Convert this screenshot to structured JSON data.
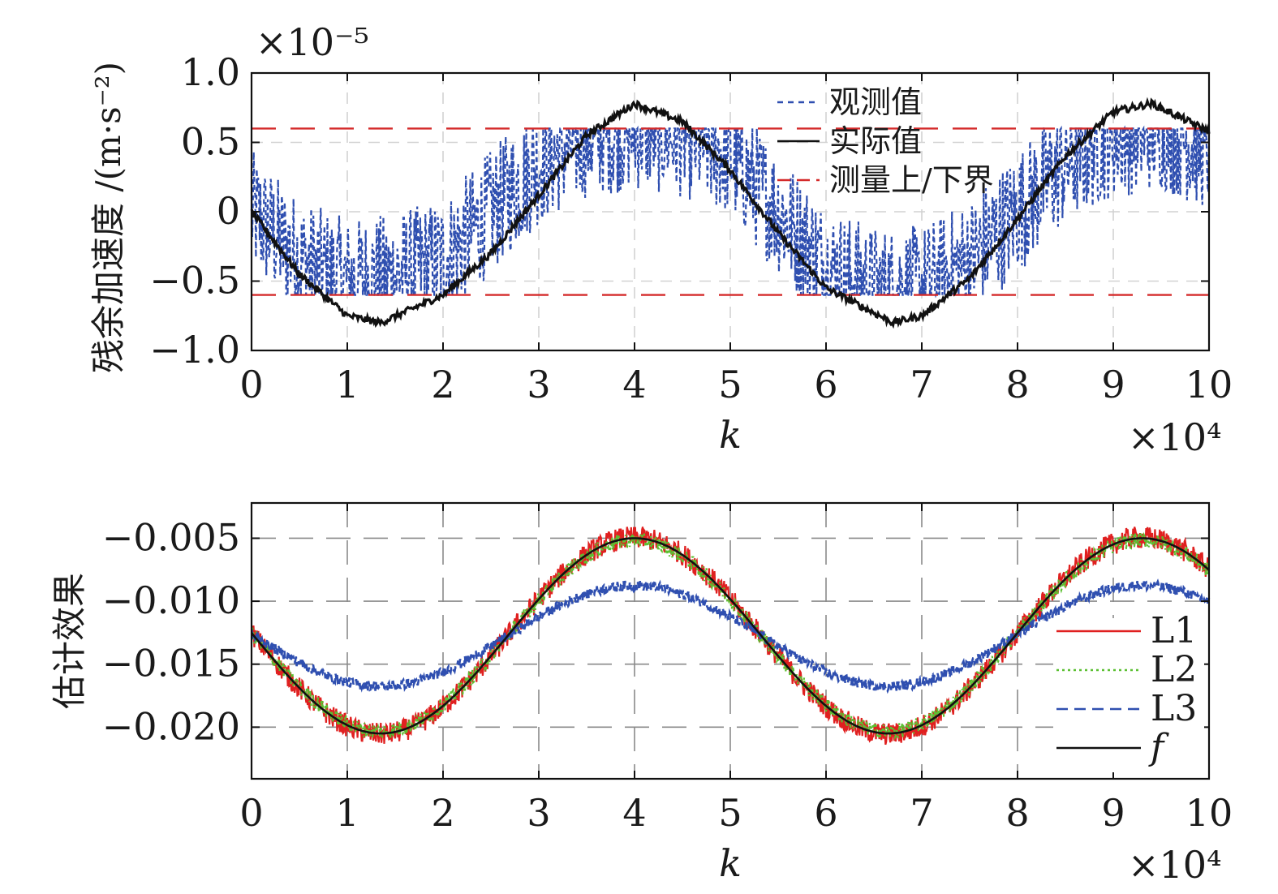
{
  "chart_data": [
    {
      "type": "line",
      "title": "",
      "xlabel": "k",
      "ylabel": "残余加速度 /(m·s⁻²)",
      "x_multiplier": "×10⁴",
      "y_multiplier": "×10⁻⁵",
      "xlim": [
        0,
        10
      ],
      "ylim": [
        -1.0,
        1.0
      ],
      "xticks": [
        "0",
        "1",
        "2",
        "3",
        "4",
        "5",
        "6",
        "7",
        "8",
        "9",
        "10"
      ],
      "yticks": [
        "−1.0",
        "−0.5",
        "0",
        "0.5",
        "1.0"
      ],
      "grid": true,
      "legend_position": "top-center",
      "series": [
        {
          "name": "观测值",
          "style": "dashed",
          "color": "#2f4fb0",
          "description_note": "noisy, clipped to measurement bounds",
          "x": [
            0,
            0.5,
            1.0,
            1.5,
            2.0,
            2.5,
            3.0,
            3.5,
            4.0,
            4.5,
            5.0,
            5.5,
            6.0,
            6.5,
            7.0,
            7.5,
            8.0,
            8.5,
            9.0,
            9.5,
            10.0
          ],
          "y": [
            0.0,
            -0.35,
            -0.5,
            -0.45,
            -0.35,
            0.0,
            0.35,
            0.55,
            0.6,
            0.55,
            0.4,
            0.0,
            -0.4,
            -0.55,
            -0.55,
            -0.35,
            0.0,
            0.35,
            0.55,
            0.6,
            0.45
          ]
        },
        {
          "name": "实际值",
          "style": "solid",
          "color": "#111111",
          "x": [
            0,
            0.5,
            1.0,
            1.35,
            2.0,
            2.5,
            3.0,
            3.5,
            4.0,
            4.5,
            5.0,
            5.5,
            6.0,
            6.7,
            7.0,
            7.5,
            8.0,
            8.5,
            9.0,
            9.4,
            10.0
          ],
          "y": [
            0.0,
            -0.45,
            -0.75,
            -0.8,
            -0.6,
            -0.3,
            0.12,
            0.55,
            0.78,
            0.65,
            0.3,
            -0.15,
            -0.55,
            -0.8,
            -0.75,
            -0.48,
            -0.05,
            0.4,
            0.72,
            0.78,
            0.58
          ]
        },
        {
          "name": "测量上/下界",
          "style": "dashed",
          "color": "#d42a2a",
          "upper": 0.6,
          "lower": -0.6
        }
      ]
    },
    {
      "type": "line",
      "title": "",
      "xlabel": "k",
      "ylabel": "估计效果",
      "x_multiplier": "×10⁴",
      "xlim": [
        0,
        10
      ],
      "ylim": [
        -0.0241,
        -0.0022
      ],
      "xticks": [
        "0",
        "1",
        "2",
        "3",
        "4",
        "5",
        "6",
        "7",
        "8",
        "9",
        "10"
      ],
      "yticks": [
        "−0.005",
        "−0.010",
        "−0.015",
        "−0.020"
      ],
      "grid": true,
      "legend_position": "bottom-right",
      "series": [
        {
          "name": "L1",
          "style": "solid",
          "color": "#e02020",
          "center": -0.01275,
          "amplitude": 0.0078,
          "noise": 0.0009
        },
        {
          "name": "L2",
          "style": "dotted",
          "color": "#5cc032",
          "center": -0.01275,
          "amplitude": 0.0076,
          "noise": 0.0006
        },
        {
          "name": "L3",
          "style": "dashed",
          "color": "#2f4fb0",
          "center": -0.01275,
          "amplitude": 0.004,
          "noise": 0.0004
        },
        {
          "name": "f",
          "style": "solid",
          "color": "#111111",
          "center": -0.01275,
          "amplitude": 0.00775,
          "noise": 0.0
        }
      ]
    }
  ]
}
